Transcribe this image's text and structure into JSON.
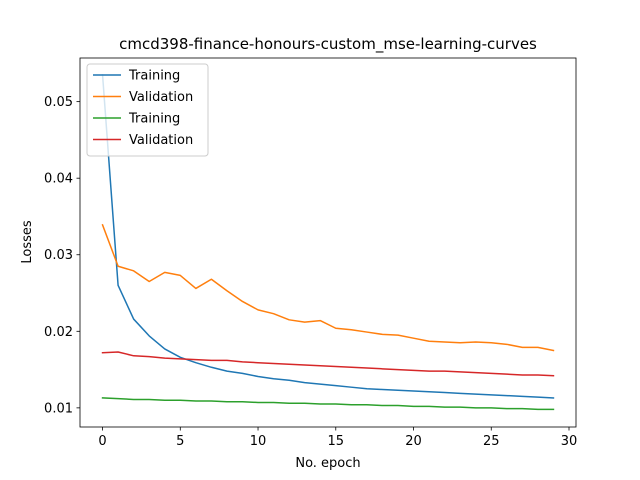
{
  "chart_data": {
    "type": "line",
    "title": "cmcd398-finance-honours-custom_mse-learning-curves",
    "xlabel": "No. epoch",
    "ylabel": "Losses",
    "xlim": [
      -1.45,
      30.45
    ],
    "ylim": [
      0.0075,
      0.0557
    ],
    "xticks": [
      0,
      5,
      10,
      15,
      20,
      25,
      30
    ],
    "yticks": [
      0.01,
      0.02,
      0.03,
      0.04,
      0.05
    ],
    "ytick_labels": [
      "0.01",
      "0.02",
      "0.03",
      "0.04",
      "0.05"
    ],
    "legend_position": "top-left",
    "grid": false,
    "x": [
      0,
      1,
      2,
      3,
      4,
      5,
      6,
      7,
      8,
      9,
      10,
      11,
      12,
      13,
      14,
      15,
      16,
      17,
      18,
      19,
      20,
      21,
      22,
      23,
      24,
      25,
      26,
      27,
      28,
      29
    ],
    "series": [
      {
        "name": " Training",
        "color": "#1f77b4",
        "values": [
          0.0535,
          0.026,
          0.0216,
          0.0194,
          0.0177,
          0.0166,
          0.0159,
          0.0153,
          0.0148,
          0.0145,
          0.0141,
          0.0138,
          0.0136,
          0.0133,
          0.0131,
          0.0129,
          0.0127,
          0.0125,
          0.0124,
          0.0123,
          0.0122,
          0.0121,
          0.012,
          0.0119,
          0.0118,
          0.0117,
          0.0116,
          0.0115,
          0.0114,
          0.0113
        ]
      },
      {
        "name": "Validation",
        "color": "#ff7f0e",
        "values": [
          0.0339,
          0.0285,
          0.0279,
          0.0265,
          0.0277,
          0.0273,
          0.0256,
          0.0268,
          0.0253,
          0.0239,
          0.0228,
          0.0223,
          0.0215,
          0.0212,
          0.0214,
          0.0204,
          0.0202,
          0.0199,
          0.0196,
          0.0195,
          0.0191,
          0.0187,
          0.0186,
          0.0185,
          0.0186,
          0.0185,
          0.0183,
          0.0179,
          0.0179,
          0.0175
        ]
      },
      {
        "name": " Training",
        "color": "#2ca02c",
        "values": [
          0.0113,
          0.0112,
          0.0111,
          0.0111,
          0.011,
          0.011,
          0.0109,
          0.0109,
          0.0108,
          0.0108,
          0.0107,
          0.0107,
          0.0106,
          0.0106,
          0.0105,
          0.0105,
          0.0104,
          0.0104,
          0.0103,
          0.0103,
          0.0102,
          0.0102,
          0.0101,
          0.0101,
          0.01,
          0.01,
          0.0099,
          0.0099,
          0.0098,
          0.0098
        ]
      },
      {
        "name": "Validation",
        "color": "#d62728",
        "values": [
          0.0172,
          0.0173,
          0.0168,
          0.0167,
          0.0165,
          0.0164,
          0.0163,
          0.0162,
          0.0162,
          0.016,
          0.0159,
          0.0158,
          0.0157,
          0.0156,
          0.0155,
          0.0154,
          0.0153,
          0.0152,
          0.0151,
          0.015,
          0.0149,
          0.0148,
          0.0148,
          0.0147,
          0.0146,
          0.0145,
          0.0144,
          0.0143,
          0.0143,
          0.0142
        ]
      }
    ]
  }
}
